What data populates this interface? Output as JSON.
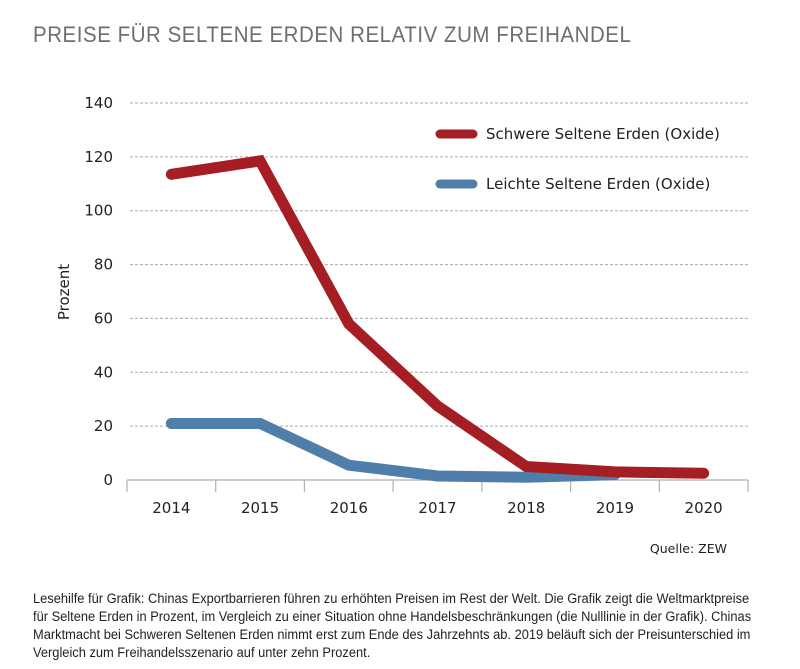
{
  "title": "PREISE FÜR SELTENE ERDEN RELATIV ZUM FREIHANDEL",
  "source": "Quelle: ZEW",
  "caption": "Lesehilfe für Grafik: Chinas Exportbarrieren führen zu erhöhten Preisen im Rest der Welt. Die Grafik zeigt die Weltmarktpreise für Seltene Erden in Prozent, im Vergleich zu einer Situation ohne Handelsbeschränkungen (die Nulllinie in der Grafik). Chinas Marktmacht bei Schweren Seltenen Erden nimmt erst zum Ende des Jahrzehnts ab. 2019 beläuft sich der Preisunterschied im Vergleich zum Freihandelsszenario auf unter zehn Prozent.",
  "chart_data": {
    "type": "line",
    "title": "PREISE FÜR SELTENE ERDEN RELATIV ZUM FREIHANDEL",
    "xlabel": "",
    "ylabel": "Prozent",
    "categories": [
      "2014",
      "2015",
      "2016",
      "2017",
      "2018",
      "2019",
      "2020"
    ],
    "ylim": [
      0,
      140
    ],
    "yticks": [
      0,
      20,
      40,
      60,
      80,
      100,
      120,
      140
    ],
    "grid": true,
    "legend_position": "top-right",
    "series": [
      {
        "name": "Schwere Seltene Erden (Oxide)",
        "color": "#a51e23",
        "values": [
          113.5,
          118.5,
          58,
          27.5,
          5,
          3,
          2.5
        ]
      },
      {
        "name": "Leichte Seltene Erden (Oxide)",
        "color": "#4f7eab",
        "values": [
          21,
          21,
          5.5,
          1.5,
          1,
          2,
          null
        ]
      }
    ],
    "source": "Quelle: ZEW"
  }
}
